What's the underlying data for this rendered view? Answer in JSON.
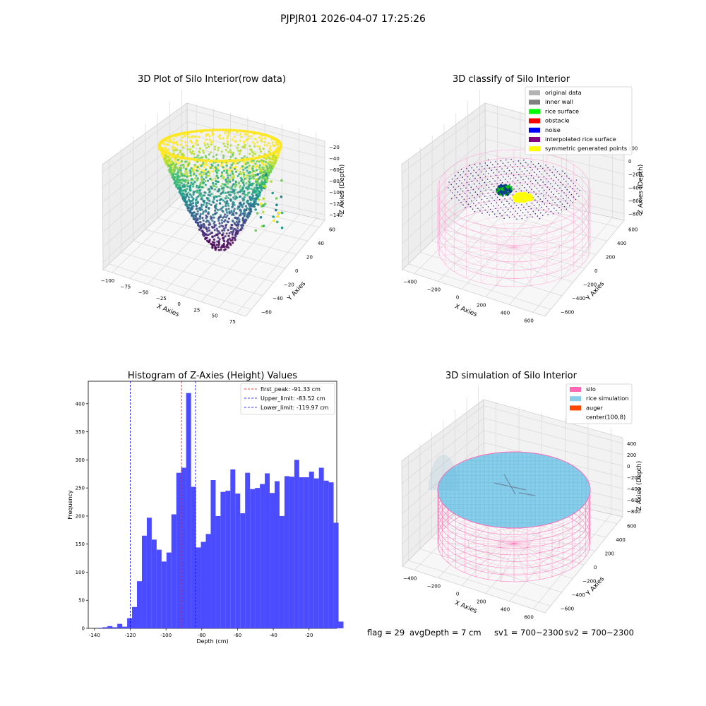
{
  "figure": {
    "suptitle": "PJPJR01 2026-04-07 17:25:26",
    "footer": {
      "flag": "flag = 29",
      "avg": "avgDepth = 7 cm",
      "sv1": "sv1 = 700~2300",
      "sv2": "sv2 = 700~2300"
    }
  },
  "chart_data": [
    {
      "type": "scatter",
      "title": "3D Plot of Silo Interior(row data)",
      "xlabel": "X Axies",
      "ylabel": "Y Axies",
      "zlabel": "Z Axies (Depth)",
      "x_ticks": [
        "−100",
        "−75",
        "−50",
        "−25",
        "0",
        "25",
        "50",
        "75"
      ],
      "y_ticks": [
        "60",
        "40",
        "20",
        "0",
        "−20",
        "−40",
        "−60"
      ],
      "z_ticks": [
        "−20",
        "−40",
        "−60",
        "−80",
        "−100",
        "−120",
        "−140"
      ],
      "colormap": "viridis",
      "point_colors": [
        "#fde725",
        "#b5de2b",
        "#6ece58",
        "#35b779",
        "#1f9e89",
        "#26828e",
        "#31688e",
        "#3e4989",
        "#482878",
        "#440154"
      ],
      "grid": true
    },
    {
      "type": "scatter",
      "title": "3D classify of Silo Interior",
      "xlabel": "X Axies",
      "ylabel": "Y Axies",
      "zlabel": "Z Axies (Depth)",
      "x_ticks": [
        "−400",
        "−200",
        "0",
        "200",
        "400",
        "600"
      ],
      "y_ticks": [
        "600",
        "400",
        "200",
        "0",
        "−200",
        "−400",
        "−600"
      ],
      "z_ticks": [
        "200",
        "0",
        "−200",
        "−400",
        "−600",
        "−800"
      ],
      "legend": [
        {
          "label": "original data",
          "color": "#b4b4b4"
        },
        {
          "label": "inner wall",
          "color": "#808080"
        },
        {
          "label": "rice surface",
          "color": "#00ff00"
        },
        {
          "label": "obstacle",
          "color": "#ff0000"
        },
        {
          "label": "noise",
          "color": "#0000ff"
        },
        {
          "label": "interpolated rice surface",
          "color": "#800080"
        },
        {
          "label": "symmetric generated points",
          "color": "#ffff00"
        }
      ],
      "grid": true
    },
    {
      "type": "bar",
      "title": "Histogram of Z-Axies (Height) Values",
      "xlabel": "Depth (cm)",
      "ylabel": "Frequency",
      "bar_color": "#4b4bff",
      "x_ticks": [
        -140,
        -120,
        -100,
        -80,
        -60,
        -40,
        -20
      ],
      "y_ticks": [
        0,
        50,
        100,
        150,
        200,
        250,
        300,
        350,
        400
      ],
      "xlim": [
        -143.5,
        -4.5
      ],
      "ylim": [
        0,
        440
      ],
      "bin_width": 2.75,
      "bin_start": -138.25,
      "counts": [
        1,
        2,
        4,
        2,
        8,
        3,
        18,
        38,
        84,
        165,
        197,
        158,
        140,
        119,
        135,
        203,
        277,
        286,
        419,
        252,
        144,
        154,
        168,
        264,
        200,
        243,
        245,
        283,
        240,
        205,
        277,
        248,
        250,
        257,
        276,
        241,
        262,
        200,
        271,
        270,
        300,
        269,
        269,
        279,
        267,
        286,
        263,
        260,
        188,
        12
      ],
      "vlines": [
        {
          "label": "first_peak: -91.33 cm",
          "x": -91.33,
          "color": "#ff0000"
        },
        {
          "label": "Upper_limit: -83.52 cm",
          "x": -83.52,
          "color": "#0000ff"
        },
        {
          "label": "Lower_limit: -119.97 cm",
          "x": -119.97,
          "color": "#0000ff"
        }
      ],
      "legend_position": "top-right",
      "grid": false
    },
    {
      "type": "scatter",
      "title": "3D simulation of Silo Interior",
      "xlabel": "X Axies",
      "ylabel": "Y Axies",
      "zlabel": "Z Axies (Depth)",
      "x_ticks": [
        "−400",
        "−200",
        "0",
        "200",
        "400",
        "600"
      ],
      "y_ticks": [
        "600",
        "400",
        "200",
        "0",
        "−200",
        "−400",
        "−600"
      ],
      "z_ticks": [
        "400",
        "200",
        "0",
        "−200",
        "−400",
        "−600",
        "−800"
      ],
      "legend": [
        {
          "label": "silo",
          "color": "#ff69b4"
        },
        {
          "label": "rice simulation",
          "color": "#87ceeb"
        },
        {
          "label": "auger",
          "color": "#ff4500"
        },
        {
          "label": "center(100,8)",
          "color": ""
        }
      ],
      "grid": true
    }
  ]
}
